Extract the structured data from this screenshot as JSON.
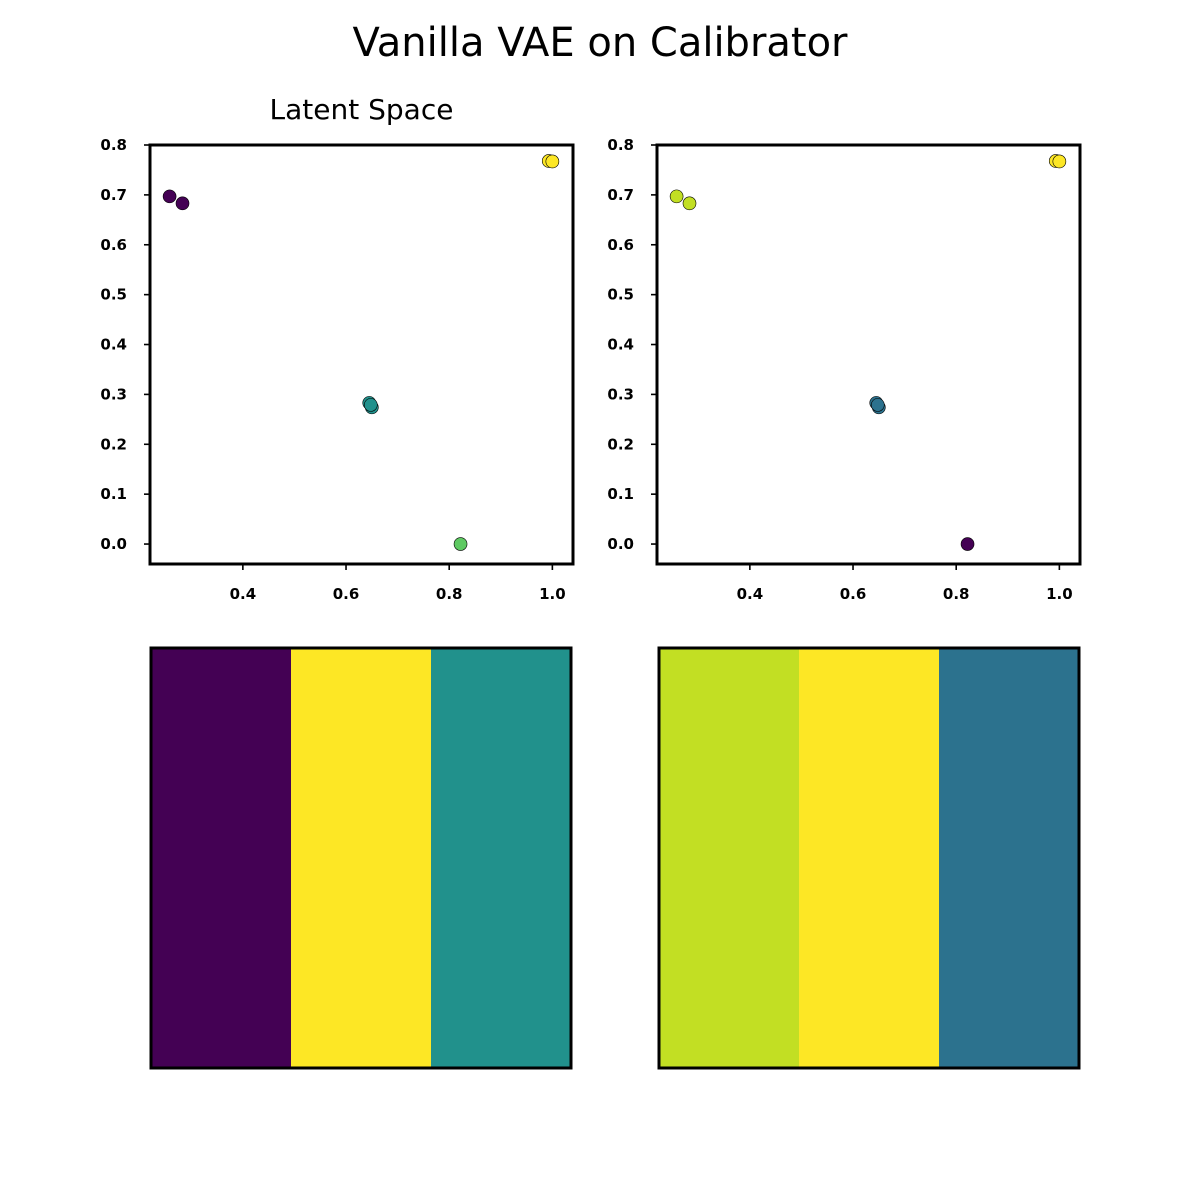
{
  "figure": {
    "title": "Vanilla VAE on Calibrator"
  },
  "chart_data": [
    {
      "type": "scatter",
      "title": "Latent Space",
      "xlabel": "",
      "ylabel": "",
      "xlim": [
        0.22,
        1.04
      ],
      "ylim": [
        -0.04,
        0.8
      ],
      "x_ticks": [
        0.4,
        0.6,
        0.8,
        1.0
      ],
      "x_tick_labels": [
        "0.4",
        "0.6",
        "0.8",
        "1.0"
      ],
      "y_ticks": [
        0.0,
        0.1,
        0.2,
        0.3,
        0.4,
        0.5,
        0.6,
        0.7,
        0.8
      ],
      "y_tick_labels": [
        "0.0",
        "0.1",
        "0.2",
        "0.3",
        "0.4",
        "0.5",
        "0.6",
        "0.7",
        "0.8"
      ],
      "grid": false,
      "points": [
        {
          "x": 0.258,
          "y": 0.697,
          "color": "#440154"
        },
        {
          "x": 0.283,
          "y": 0.683,
          "color": "#440154"
        },
        {
          "x": 0.65,
          "y": 0.274,
          "color": "#21918c"
        },
        {
          "x": 0.645,
          "y": 0.283,
          "color": "#21918c"
        },
        {
          "x": 0.648,
          "y": 0.279,
          "color": "#21918c"
        },
        {
          "x": 0.822,
          "y": 0.0,
          "color": "#5ec962"
        },
        {
          "x": 0.993,
          "y": 0.768,
          "color": "#fde725"
        },
        {
          "x": 1.0,
          "y": 0.767,
          "color": "#fde725"
        }
      ]
    },
    {
      "type": "scatter",
      "title": "",
      "xlabel": "",
      "ylabel": "",
      "xlim": [
        0.22,
        1.04
      ],
      "ylim": [
        -0.04,
        0.8
      ],
      "x_ticks": [
        0.4,
        0.6,
        0.8,
        1.0
      ],
      "x_tick_labels": [
        "0.4",
        "0.6",
        "0.8",
        "1.0"
      ],
      "y_ticks": [
        0.0,
        0.1,
        0.2,
        0.3,
        0.4,
        0.5,
        0.6,
        0.7,
        0.8
      ],
      "y_tick_labels": [
        "0.0",
        "0.1",
        "0.2",
        "0.3",
        "0.4",
        "0.5",
        "0.6",
        "0.7",
        "0.8"
      ],
      "grid": false,
      "points": [
        {
          "x": 0.258,
          "y": 0.697,
          "color": "#c2df23"
        },
        {
          "x": 0.283,
          "y": 0.683,
          "color": "#c2df23"
        },
        {
          "x": 0.65,
          "y": 0.274,
          "color": "#2c728e"
        },
        {
          "x": 0.645,
          "y": 0.283,
          "color": "#2c728e"
        },
        {
          "x": 0.648,
          "y": 0.279,
          "color": "#2c728e"
        },
        {
          "x": 0.822,
          "y": 0.0,
          "color": "#440154"
        },
        {
          "x": 0.993,
          "y": 0.768,
          "color": "#fde725"
        },
        {
          "x": 1.0,
          "y": 0.767,
          "color": "#fde725"
        }
      ]
    },
    {
      "type": "heatmap",
      "title": "",
      "columns": 3,
      "colors": [
        "#440154",
        "#fde725",
        "#21918c"
      ]
    },
    {
      "type": "heatmap",
      "title": "",
      "columns": 3,
      "colors": [
        "#c2df23",
        "#fde725",
        "#2c728e"
      ]
    }
  ]
}
